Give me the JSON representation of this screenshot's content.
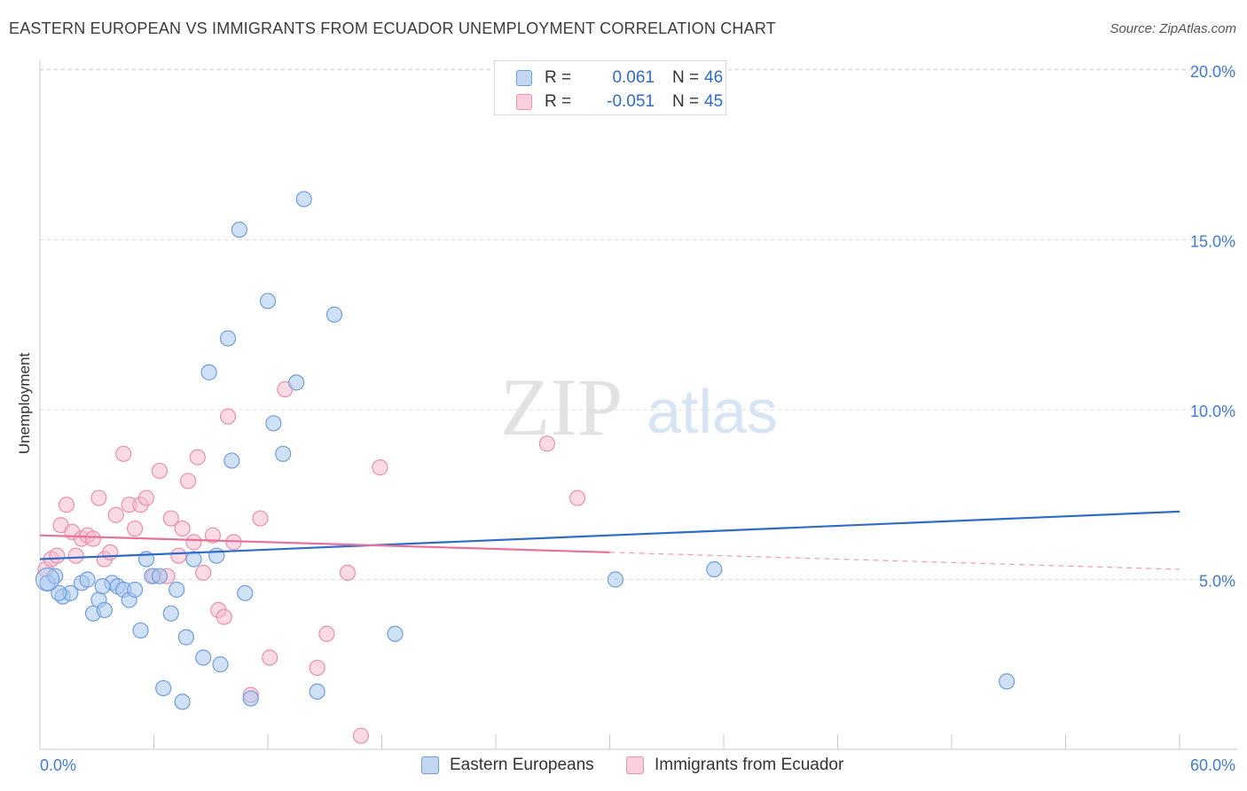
{
  "title": "EASTERN EUROPEAN VS IMMIGRANTS FROM ECUADOR UNEMPLOYMENT CORRELATION CHART",
  "source": "Source: ZipAtlas.com",
  "watermark": {
    "zip": "ZIP",
    "atlas": "atlas"
  },
  "colors": {
    "blue_fill": "#a9c8ef",
    "blue_stroke": "#6d9de0",
    "blue_line": "#2f6bc9",
    "pink_fill": "#f6bccd",
    "pink_stroke": "#ec8fae",
    "pink_line": "#e8709a",
    "tick_text": "#3f7bd6",
    "grid": "#dcdcdc"
  },
  "legend": {
    "rows": [
      {
        "r_label": "R =",
        "r_value": "0.061",
        "n_label": "N =",
        "n_value": "46"
      },
      {
        "r_label": "R =",
        "r_value": "-0.051",
        "n_label": "N =",
        "n_value": "45"
      }
    ]
  },
  "bottom_legend": {
    "items": [
      {
        "label": "Eastern Europeans"
      },
      {
        "label": "Immigrants from Ecuador"
      }
    ]
  },
  "chart_data": {
    "type": "scatter",
    "xlabel": "",
    "ylabel": "Unemployment",
    "xlim": [
      0,
      60
    ],
    "ylim": [
      0,
      20
    ],
    "x_tick_labels": [
      "0.0%",
      "60.0%"
    ],
    "y_ticks": [
      5,
      10,
      15,
      20
    ],
    "y_tick_labels": [
      "5.0%",
      "10.0%",
      "15.0%",
      "20.0%"
    ],
    "grid": true,
    "series": [
      {
        "name": "Eastern Europeans",
        "r": 0.061,
        "n": 46,
        "trend": {
          "x": [
            0,
            60
          ],
          "y": [
            5.6,
            7.0
          ],
          "solid_until": 60
        },
        "points": [
          [
            0.4,
            4.9
          ],
          [
            0.8,
            5.1
          ],
          [
            1.2,
            4.5
          ],
          [
            1.6,
            4.6
          ],
          [
            2.2,
            4.9
          ],
          [
            2.5,
            5.0
          ],
          [
            2.8,
            4.0
          ],
          [
            3.1,
            4.4
          ],
          [
            3.4,
            4.1
          ],
          [
            3.8,
            4.9
          ],
          [
            4.1,
            4.8
          ],
          [
            4.4,
            4.7
          ],
          [
            4.7,
            4.4
          ],
          [
            5.0,
            4.7
          ],
          [
            5.3,
            3.5
          ],
          [
            5.6,
            5.6
          ],
          [
            5.9,
            5.1
          ],
          [
            6.3,
            5.1
          ],
          [
            6.9,
            4.0
          ],
          [
            7.2,
            4.7
          ],
          [
            7.7,
            3.3
          ],
          [
            8.1,
            5.6
          ],
          [
            8.6,
            2.7
          ],
          [
            8.9,
            11.1
          ],
          [
            9.3,
            5.7
          ],
          [
            9.5,
            2.5
          ],
          [
            9.9,
            12.1
          ],
          [
            10.1,
            8.5
          ],
          [
            10.5,
            15.3
          ],
          [
            10.8,
            4.6
          ],
          [
            11.1,
            1.5
          ],
          [
            12.0,
            13.2
          ],
          [
            12.3,
            9.6
          ],
          [
            12.8,
            8.7
          ],
          [
            13.5,
            10.8
          ],
          [
            13.9,
            16.2
          ],
          [
            14.6,
            1.7
          ],
          [
            15.5,
            12.8
          ],
          [
            7.5,
            1.4
          ],
          [
            18.7,
            3.4
          ],
          [
            30.3,
            5.0
          ],
          [
            35.5,
            5.3
          ],
          [
            50.9,
            2.0
          ],
          [
            6.5,
            1.8
          ],
          [
            3.3,
            4.8
          ],
          [
            1.0,
            4.6
          ]
        ]
      },
      {
        "name": "Immigrants from Ecuador",
        "r": -0.051,
        "n": 45,
        "trend": {
          "x": [
            0,
            60
          ],
          "y": [
            6.3,
            5.3
          ],
          "solid_until": 30
        },
        "points": [
          [
            0.3,
            5.3
          ],
          [
            0.6,
            5.6
          ],
          [
            0.9,
            5.7
          ],
          [
            1.1,
            6.6
          ],
          [
            1.4,
            7.2
          ],
          [
            1.7,
            6.4
          ],
          [
            1.9,
            5.7
          ],
          [
            2.2,
            6.2
          ],
          [
            2.5,
            6.3
          ],
          [
            2.8,
            6.2
          ],
          [
            3.1,
            7.4
          ],
          [
            3.4,
            5.6
          ],
          [
            3.7,
            5.8
          ],
          [
            4.0,
            6.9
          ],
          [
            4.4,
            8.7
          ],
          [
            4.7,
            7.2
          ],
          [
            5.0,
            6.5
          ],
          [
            5.3,
            7.2
          ],
          [
            5.6,
            7.4
          ],
          [
            6.0,
            5.1
          ],
          [
            6.3,
            8.2
          ],
          [
            6.7,
            5.1
          ],
          [
            6.9,
            6.8
          ],
          [
            7.3,
            5.7
          ],
          [
            7.5,
            6.5
          ],
          [
            7.8,
            7.9
          ],
          [
            8.1,
            6.1
          ],
          [
            8.3,
            8.6
          ],
          [
            8.6,
            5.2
          ],
          [
            9.1,
            6.3
          ],
          [
            9.4,
            4.1
          ],
          [
            9.7,
            3.9
          ],
          [
            9.9,
            9.8
          ],
          [
            10.2,
            6.1
          ],
          [
            11.1,
            1.6
          ],
          [
            11.6,
            6.8
          ],
          [
            12.1,
            2.7
          ],
          [
            12.9,
            10.6
          ],
          [
            14.6,
            2.4
          ],
          [
            15.1,
            3.4
          ],
          [
            16.2,
            5.2
          ],
          [
            16.9,
            0.4
          ],
          [
            17.9,
            8.3
          ],
          [
            26.7,
            9.0
          ],
          [
            28.3,
            7.4
          ]
        ]
      }
    ]
  }
}
